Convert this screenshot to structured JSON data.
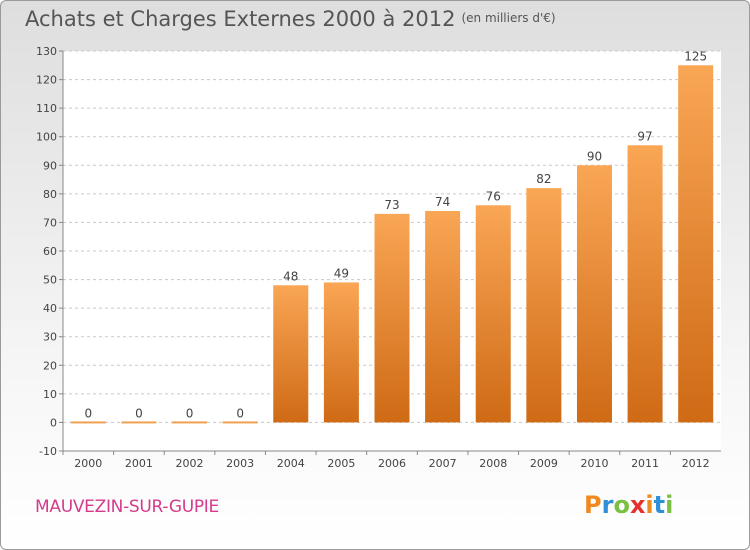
{
  "header": {
    "title": "Achats et Charges Externes 2000 à 2012",
    "unit": "(en milliers d'€)"
  },
  "footer": {
    "commune": "MAUVEZIN-SUR-GUPIE"
  },
  "logo": {
    "text": "Proxiti",
    "letters": [
      "P",
      "r",
      "o",
      "x",
      "i",
      "t",
      "i"
    ],
    "colors": [
      "#f08a1e",
      "#2f8fd8",
      "#7ac143",
      "#e5322d",
      "#f08a1e",
      "#2f8fd8",
      "#7ac143"
    ]
  },
  "colors": {
    "bar_light": "#f9a655",
    "bar_dark": "#cf6a15",
    "zero_bar": "#f0a050",
    "grid": "#c8c8c8"
  },
  "chart_data": {
    "type": "bar",
    "title": "Achats et Charges Externes 2000 à 2012",
    "subtitle": "(en milliers d'€)",
    "categories": [
      "2000",
      "2001",
      "2002",
      "2003",
      "2004",
      "2005",
      "2006",
      "2007",
      "2008",
      "2009",
      "2010",
      "2011",
      "2012"
    ],
    "values": [
      0,
      0,
      0,
      0,
      48,
      49,
      73,
      74,
      76,
      82,
      90,
      97,
      125
    ],
    "ylim": [
      -10,
      130
    ],
    "yticks": [
      -10,
      0,
      10,
      20,
      30,
      40,
      50,
      60,
      70,
      80,
      90,
      100,
      110,
      120,
      130
    ],
    "grid": true,
    "data_labels": true
  }
}
